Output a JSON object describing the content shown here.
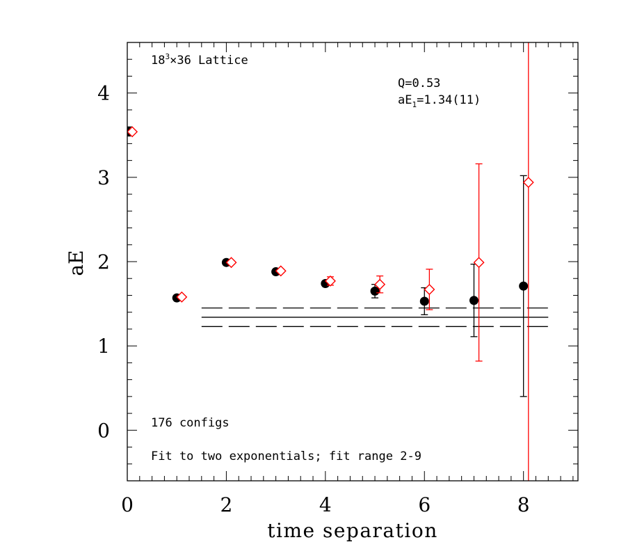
{
  "chart_data": {
    "type": "scatter",
    "xlabel": "time separation",
    "ylabel": "aE",
    "xlim": [
      0,
      9.1
    ],
    "ylim": [
      -0.6,
      4.6
    ],
    "x_ticks": [
      0,
      2,
      4,
      6,
      8
    ],
    "x_tick_labels": [
      "0",
      "2",
      "4",
      "6",
      "8"
    ],
    "y_ticks": [
      0,
      1,
      2,
      3,
      4
    ],
    "y_tick_labels": [
      "0",
      "1",
      "2",
      "3",
      "4"
    ],
    "annotations": {
      "lattice_base": "18",
      "lattice_exp": "3",
      "lattice_rest": "×36 Lattice",
      "q_value": "Q=0.53",
      "energy_prefix": "aE",
      "energy_sub": "1",
      "energy_value": "=1.34(11)",
      "configs": "176 configs",
      "fit_desc": "Fit to two exponentials; fit range 2-9"
    },
    "series": [
      {
        "marker": "filled-circle",
        "color": "#000000",
        "x": [
          0,
          1,
          2,
          3,
          4,
          5,
          6,
          7,
          8
        ],
        "y": [
          3.54,
          1.57,
          1.99,
          1.88,
          1.74,
          1.65,
          1.53,
          1.54,
          1.71
        ],
        "err": [
          0.05,
          0.02,
          0.02,
          0.02,
          0.02,
          0.08,
          0.16,
          0.43,
          1.31
        ]
      },
      {
        "marker": "open-diamond",
        "color": "#ff0000",
        "x": [
          0.1,
          1.1,
          2.1,
          3.1,
          4.1,
          5.1,
          6.1,
          7.1,
          8.1
        ],
        "y": [
          3.54,
          1.58,
          1.99,
          1.89,
          1.77,
          1.73,
          1.67,
          1.99,
          2.94
        ],
        "err": [
          0.02,
          0.01,
          0.02,
          0.02,
          0.05,
          0.1,
          0.24,
          1.17,
          4.5
        ]
      }
    ],
    "fit": {
      "central": 1.34,
      "error": 0.11,
      "x_range": [
        1.5,
        8.5
      ]
    },
    "colors": {
      "series1": "#000000",
      "series2": "#ff0000"
    }
  }
}
